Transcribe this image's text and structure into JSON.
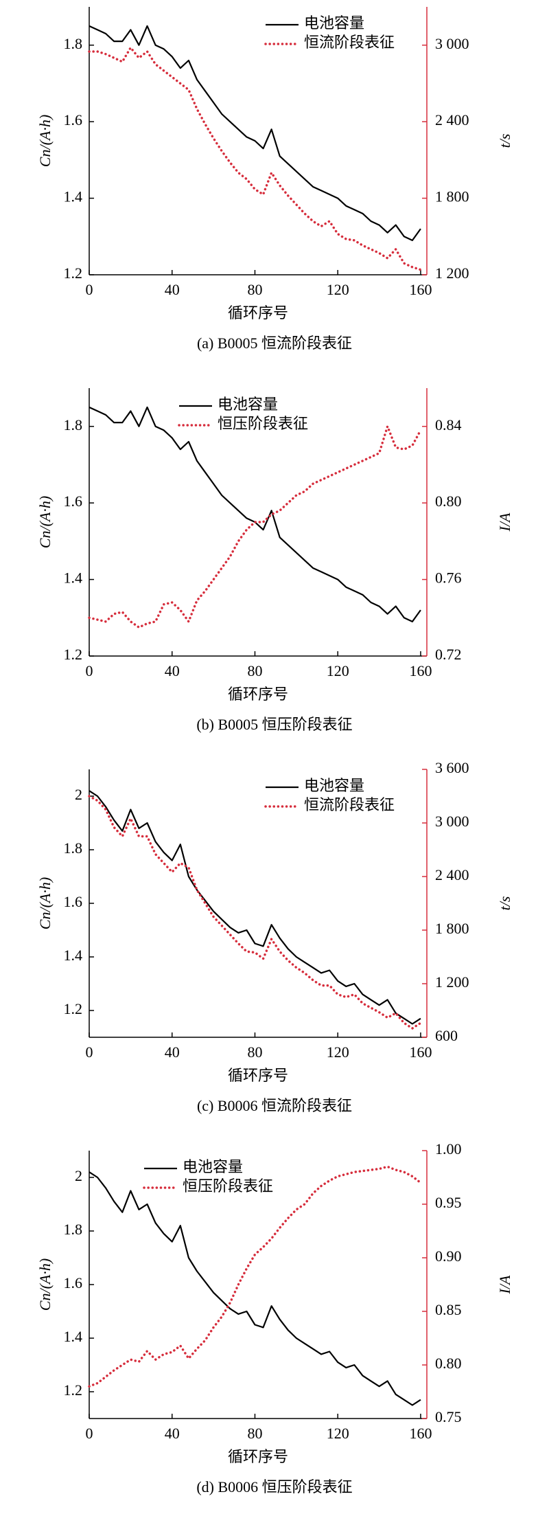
{
  "chart_data": [
    {
      "type": "line",
      "caption": "(a) B0005 恒流阶段表征",
      "xlabel": "循环序号",
      "ylabel": "Cn/(A·h)",
      "y2label": "t/s",
      "legend": "upper right",
      "x": [
        0,
        4,
        8,
        12,
        16,
        20,
        24,
        28,
        32,
        36,
        40,
        44,
        48,
        52,
        56,
        60,
        64,
        68,
        72,
        76,
        80,
        84,
        88,
        92,
        96,
        100,
        104,
        108,
        112,
        116,
        120,
        124,
        128,
        132,
        136,
        140,
        144,
        148,
        152,
        156,
        160
      ],
      "xlim": [
        0,
        163
      ],
      "xticks": [
        0,
        40,
        80,
        120,
        160
      ],
      "ylim": [
        1.2,
        1.9
      ],
      "yticks": [
        1.2,
        1.4,
        1.6,
        1.8
      ],
      "y2lim": [
        1200,
        3300
      ],
      "y2ticks": [
        {
          "value": 1200,
          "label": "1 200"
        },
        {
          "value": 1800,
          "label": "1 800"
        },
        {
          "value": 2400,
          "label": "2 400"
        },
        {
          "value": 3000,
          "label": "3 000"
        }
      ],
      "series": [
        {
          "name": "电池容量",
          "color": "#000000",
          "style": "solid",
          "values": [
            1.85,
            1.84,
            1.83,
            1.81,
            1.81,
            1.84,
            1.8,
            1.85,
            1.8,
            1.79,
            1.77,
            1.74,
            1.76,
            1.71,
            1.68,
            1.65,
            1.62,
            1.6,
            1.58,
            1.56,
            1.55,
            1.53,
            1.58,
            1.51,
            1.49,
            1.47,
            1.45,
            1.43,
            1.42,
            1.41,
            1.4,
            1.38,
            1.37,
            1.36,
            1.34,
            1.33,
            1.31,
            1.33,
            1.3,
            1.29,
            1.32
          ]
        },
        {
          "name": "恒流阶段表征",
          "color": "#d62d3c",
          "style": "dotted",
          "axis": "y2",
          "values": [
            2950,
            2950,
            2930,
            2900,
            2870,
            2980,
            2900,
            2950,
            2850,
            2800,
            2750,
            2700,
            2650,
            2500,
            2380,
            2270,
            2170,
            2080,
            2000,
            1950,
            1870,
            1830,
            2000,
            1900,
            1820,
            1750,
            1680,
            1620,
            1580,
            1620,
            1520,
            1480,
            1470,
            1430,
            1400,
            1370,
            1330,
            1400,
            1290,
            1260,
            1240
          ]
        }
      ]
    },
    {
      "type": "line",
      "caption": "(b) B0005 恒压阶段表征",
      "xlabel": "循环序号",
      "ylabel": "Cn/(A·h)",
      "y2label": "I/A",
      "legend": "upper center",
      "x": [
        0,
        4,
        8,
        12,
        16,
        20,
        24,
        28,
        32,
        36,
        40,
        44,
        48,
        52,
        56,
        60,
        64,
        68,
        72,
        76,
        80,
        84,
        88,
        92,
        96,
        100,
        104,
        108,
        112,
        116,
        120,
        124,
        128,
        132,
        136,
        140,
        144,
        148,
        152,
        156,
        160
      ],
      "xlim": [
        0,
        163
      ],
      "xticks": [
        0,
        40,
        80,
        120,
        160
      ],
      "ylim": [
        1.2,
        1.9
      ],
      "yticks": [
        1.2,
        1.4,
        1.6,
        1.8
      ],
      "y2lim": [
        0.72,
        0.86
      ],
      "y2ticks": [
        0.72,
        0.76,
        {
          "value": 0.8,
          "label": "0.80"
        },
        0.84
      ],
      "series": [
        {
          "name": "电池容量",
          "color": "#000000",
          "style": "solid",
          "values": [
            1.85,
            1.84,
            1.83,
            1.81,
            1.81,
            1.84,
            1.8,
            1.85,
            1.8,
            1.79,
            1.77,
            1.74,
            1.76,
            1.71,
            1.68,
            1.65,
            1.62,
            1.6,
            1.58,
            1.56,
            1.55,
            1.53,
            1.58,
            1.51,
            1.49,
            1.47,
            1.45,
            1.43,
            1.42,
            1.41,
            1.4,
            1.38,
            1.37,
            1.36,
            1.34,
            1.33,
            1.31,
            1.33,
            1.3,
            1.29,
            1.32
          ]
        },
        {
          "name": "恒压阶段表征",
          "color": "#d62d3c",
          "style": "dotted",
          "axis": "y2",
          "values": [
            0.74,
            0.739,
            0.738,
            0.742,
            0.743,
            0.738,
            0.735,
            0.737,
            0.738,
            0.747,
            0.748,
            0.744,
            0.738,
            0.749,
            0.754,
            0.76,
            0.766,
            0.772,
            0.78,
            0.786,
            0.79,
            0.79,
            0.794,
            0.796,
            0.8,
            0.804,
            0.806,
            0.81,
            0.812,
            0.814,
            0.816,
            0.818,
            0.82,
            0.822,
            0.824,
            0.826,
            0.84,
            0.829,
            0.828,
            0.83,
            0.838
          ]
        }
      ]
    },
    {
      "type": "line",
      "caption": "(c) B0006 恒流阶段表征",
      "xlabel": "循环序号",
      "ylabel": "Cn/(A·h)",
      "y2label": "t/s",
      "legend": "upper right",
      "x": [
        0,
        4,
        8,
        12,
        16,
        20,
        24,
        28,
        32,
        36,
        40,
        44,
        48,
        52,
        56,
        60,
        64,
        68,
        72,
        76,
        80,
        84,
        88,
        92,
        96,
        100,
        104,
        108,
        112,
        116,
        120,
        124,
        128,
        132,
        136,
        140,
        144,
        148,
        152,
        156,
        160
      ],
      "xlim": [
        0,
        163
      ],
      "xticks": [
        0,
        40,
        80,
        120,
        160
      ],
      "ylim": [
        1.1,
        2.1
      ],
      "yticks": [
        1.2,
        1.4,
        1.6,
        1.8,
        2.0
      ],
      "y2lim": [
        600,
        3600
      ],
      "y2ticks": [
        600,
        {
          "value": 1200,
          "label": "1 200"
        },
        {
          "value": 1800,
          "label": "1 800"
        },
        {
          "value": 2400,
          "label": "2 400"
        },
        {
          "value": 3000,
          "label": "3 000"
        },
        {
          "value": 3600,
          "label": "3 600"
        }
      ],
      "series": [
        {
          "name": "电池容量",
          "color": "#000000",
          "style": "solid",
          "values": [
            2.02,
            2.0,
            1.96,
            1.91,
            1.87,
            1.95,
            1.88,
            1.9,
            1.83,
            1.79,
            1.76,
            1.82,
            1.7,
            1.65,
            1.61,
            1.57,
            1.54,
            1.51,
            1.49,
            1.5,
            1.45,
            1.44,
            1.52,
            1.47,
            1.43,
            1.4,
            1.38,
            1.36,
            1.34,
            1.35,
            1.31,
            1.29,
            1.3,
            1.26,
            1.24,
            1.22,
            1.24,
            1.19,
            1.17,
            1.15,
            1.17
          ]
        },
        {
          "name": "恒流阶段表征",
          "color": "#d62d3c",
          "style": "dotted",
          "axis": "y2",
          "values": [
            3300,
            3250,
            3150,
            2950,
            2850,
            3050,
            2850,
            2850,
            2650,
            2550,
            2450,
            2550,
            2500,
            2250,
            2100,
            1950,
            1850,
            1750,
            1650,
            1560,
            1550,
            1480,
            1700,
            1560,
            1460,
            1380,
            1320,
            1240,
            1180,
            1180,
            1080,
            1050,
            1080,
            980,
            930,
            880,
            820,
            870,
            760,
            700,
            760
          ]
        }
      ]
    },
    {
      "type": "line",
      "caption": "(d) B0006 恒压阶段表征",
      "xlabel": "循环序号",
      "ylabel": "Cn/(A·h)",
      "y2label": "I/A",
      "legend": "upper left",
      "x": [
        0,
        4,
        8,
        12,
        16,
        20,
        24,
        28,
        32,
        36,
        40,
        44,
        48,
        52,
        56,
        60,
        64,
        68,
        72,
        76,
        80,
        84,
        88,
        92,
        96,
        100,
        104,
        108,
        112,
        116,
        120,
        124,
        128,
        132,
        136,
        140,
        144,
        148,
        152,
        156,
        160
      ],
      "xlim": [
        0,
        163
      ],
      "xticks": [
        0,
        40,
        80,
        120,
        160
      ],
      "ylim": [
        1.1,
        2.1
      ],
      "yticks": [
        1.2,
        1.4,
        1.6,
        1.8,
        2.0
      ],
      "y2lim": [
        0.75,
        1.0
      ],
      "y2ticks": [
        0.75,
        {
          "value": 0.8,
          "label": "0.80"
        },
        0.85,
        {
          "value": 0.9,
          "label": "0.90"
        },
        0.95,
        {
          "value": 1.0,
          "label": "1.00"
        }
      ],
      "series": [
        {
          "name": "电池容量",
          "color": "#000000",
          "style": "solid",
          "values": [
            2.02,
            2.0,
            1.96,
            1.91,
            1.87,
            1.95,
            1.88,
            1.9,
            1.83,
            1.79,
            1.76,
            1.82,
            1.7,
            1.65,
            1.61,
            1.57,
            1.54,
            1.51,
            1.49,
            1.5,
            1.45,
            1.44,
            1.52,
            1.47,
            1.43,
            1.4,
            1.38,
            1.36,
            1.34,
            1.35,
            1.31,
            1.29,
            1.3,
            1.26,
            1.24,
            1.22,
            1.24,
            1.19,
            1.17,
            1.15,
            1.17
          ]
        },
        {
          "name": "恒压阶段表征",
          "color": "#d62d3c",
          "style": "dotted",
          "axis": "y2",
          "values": [
            0.78,
            0.783,
            0.789,
            0.795,
            0.8,
            0.805,
            0.803,
            0.813,
            0.805,
            0.81,
            0.812,
            0.818,
            0.806,
            0.815,
            0.823,
            0.835,
            0.845,
            0.858,
            0.875,
            0.89,
            0.903,
            0.91,
            0.918,
            0.928,
            0.937,
            0.945,
            0.95,
            0.96,
            0.967,
            0.972,
            0.976,
            0.978,
            0.98,
            0.981,
            0.982,
            0.983,
            0.985,
            0.982,
            0.98,
            0.976,
            0.97
          ]
        }
      ]
    }
  ]
}
